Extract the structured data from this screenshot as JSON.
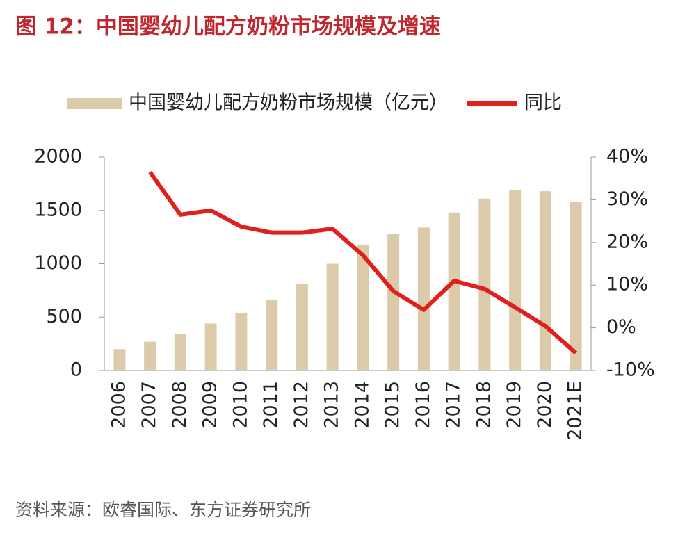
{
  "chart_data": {
    "type": "combo",
    "title": "图 12：中国婴幼儿配方奶粉市场规模及增速",
    "source": "资料来源：欧睿国际、东方证券研究所",
    "categories": [
      "2006",
      "2007",
      "2008",
      "2009",
      "2010",
      "2011",
      "2012",
      "2013",
      "2014",
      "2015",
      "2016",
      "2017",
      "2018",
      "2019",
      "2020",
      "2021E"
    ],
    "series": [
      {
        "name": "中国婴幼儿配方奶粉市场规模（亿元）",
        "type": "bar",
        "axis": "y",
        "color": "#dccbab",
        "values": [
          200,
          270,
          340,
          440,
          540,
          660,
          810,
          1000,
          1180,
          1280,
          1340,
          1480,
          1610,
          1690,
          1680,
          1580
        ]
      },
      {
        "name": "同比",
        "type": "line",
        "axis": "y2",
        "color": "#e0201c",
        "values": [
          null,
          36.5,
          26.5,
          27.5,
          23.7,
          22.3,
          22.3,
          23.2,
          17,
          8.6,
          4.2,
          11,
          9.1,
          4.8,
          0.4,
          -5.9
        ]
      }
    ],
    "ylim": [
      0,
      2000
    ],
    "yticks": [
      0,
      500,
      1000,
      1500,
      2000
    ],
    "y2lim": [
      -10,
      40
    ],
    "y2ticks": [
      {
        "value": -10,
        "label": "-10%"
      },
      {
        "value": 0,
        "label": "0%"
      },
      {
        "value": 10,
        "label": "10%"
      },
      {
        "value": 20,
        "label": "20%"
      },
      {
        "value": 30,
        "label": "30%"
      },
      {
        "value": 40,
        "label": "40%"
      }
    ],
    "grid": false,
    "legend": "top"
  }
}
